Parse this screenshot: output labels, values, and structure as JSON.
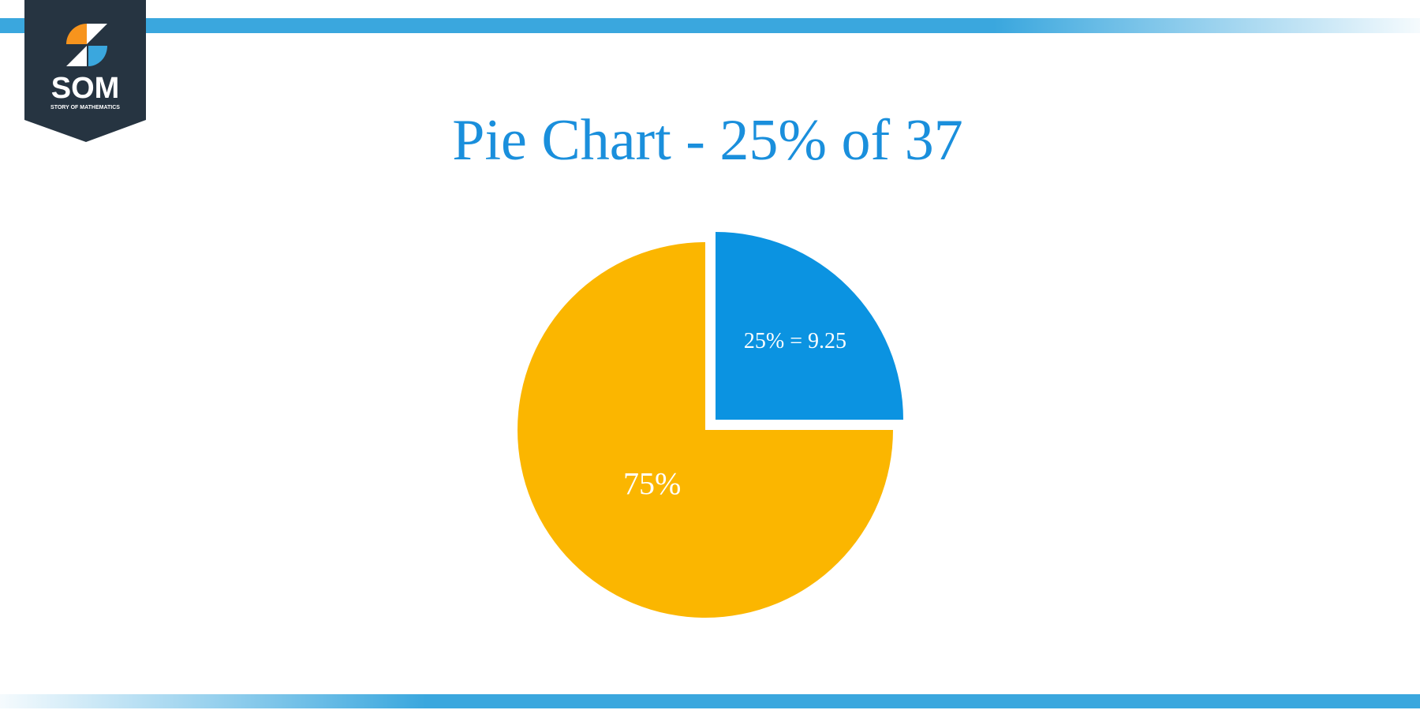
{
  "logo": {
    "title": "SOM",
    "subtitle": "STORY OF MATHEMATICS"
  },
  "chart_data": {
    "type": "pie",
    "title": "Pie Chart - 25% of 37",
    "values": [
      25,
      75
    ],
    "value_labels": [
      "25% = 9.25",
      "75%"
    ],
    "colors": [
      "#0b93e1",
      "#fbb600"
    ],
    "exploded": [
      true,
      false
    ]
  }
}
